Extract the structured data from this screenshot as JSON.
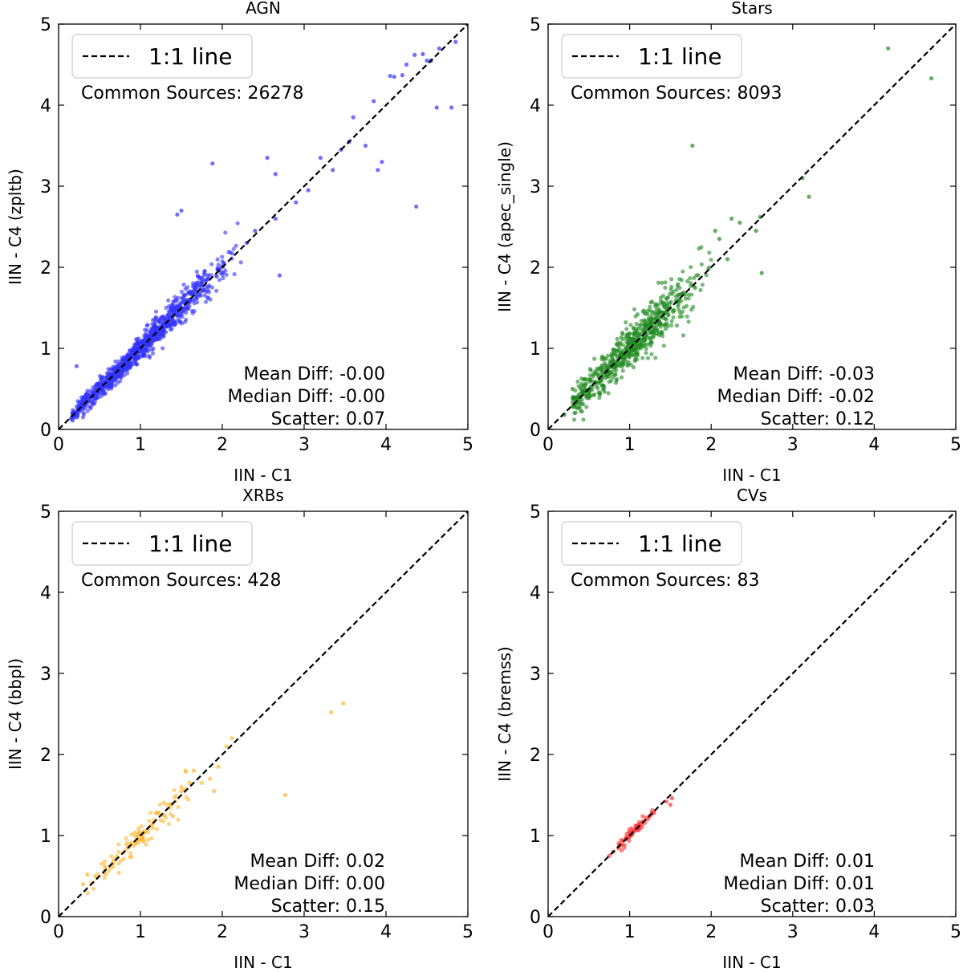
{
  "figure": {
    "reference_line_label": "1:1 line"
  },
  "chart_data": [
    {
      "type": "scatter",
      "title": "AGN",
      "xlabel": "IIN - C1",
      "ylabel": "IIN - C4 (zpltb)",
      "xlim": [
        0,
        5
      ],
      "ylim": [
        0,
        5
      ],
      "xticks": [
        "0",
        "1",
        "2",
        "3",
        "4",
        "5"
      ],
      "yticks": [
        "0",
        "1",
        "2",
        "3",
        "4",
        "5"
      ],
      "color": "#3333ff",
      "legend": "1:1 line",
      "common_sources": "Common Sources: 26278",
      "stats": [
        "Mean Diff: -0.00",
        "Median Diff: -0.00",
        "Scatter: 0.07"
      ],
      "cluster": {
        "n": 950,
        "xmin": 0.15,
        "xmax": 2.25,
        "sigma": 0.07,
        "center": 1.0
      },
      "outliers": [
        [
          4.35,
          4.62
        ],
        [
          4.45,
          4.63
        ],
        [
          4.55,
          4.55
        ],
        [
          4.65,
          4.7
        ],
        [
          4.85,
          4.78
        ],
        [
          4.8,
          3.97
        ],
        [
          4.62,
          3.97
        ],
        [
          4.37,
          2.75
        ],
        [
          4.05,
          4.36
        ],
        [
          4.2,
          4.37
        ],
        [
          3.85,
          4.05
        ],
        [
          3.6,
          3.85
        ],
        [
          3.9,
          3.2
        ],
        [
          3.95,
          3.3
        ],
        [
          3.55,
          3.55
        ],
        [
          3.75,
          3.5
        ],
        [
          3.45,
          3.45
        ],
        [
          3.2,
          3.35
        ],
        [
          2.55,
          3.35
        ],
        [
          2.65,
          3.15
        ],
        [
          3.05,
          2.95
        ],
        [
          1.88,
          3.28
        ],
        [
          1.45,
          2.65
        ],
        [
          1.5,
          2.7
        ],
        [
          2.7,
          1.9
        ],
        [
          2.65,
          2.6
        ],
        [
          2.4,
          2.45
        ],
        [
          2.3,
          2.3
        ],
        [
          0.22,
          0.78
        ],
        [
          2.9,
          2.8
        ],
        [
          3.35,
          3.2
        ],
        [
          4.5,
          4.55
        ],
        [
          4.25,
          4.5
        ],
        [
          4.1,
          4.35
        ]
      ]
    },
    {
      "type": "scatter",
      "title": "Stars",
      "xlabel": "IIN - C1",
      "ylabel": "IIN - C4 (apec_single)",
      "xlim": [
        0,
        5
      ],
      "ylim": [
        0,
        5
      ],
      "xticks": [
        "0",
        "1",
        "2",
        "3",
        "4",
        "5"
      ],
      "yticks": [
        "0",
        "1",
        "2",
        "3",
        "4",
        "5"
      ],
      "color": "#228b22",
      "legend": "1:1 line",
      "common_sources": "Common Sources: 8093",
      "stats": [
        "Mean Diff: -0.03",
        "Median Diff: -0.02",
        "Scatter: 0.12"
      ],
      "cluster": {
        "n": 650,
        "xmin": 0.3,
        "xmax": 2.0,
        "sigma": 0.12,
        "center": 1.0
      },
      "outliers": [
        [
          4.17,
          4.7
        ],
        [
          4.7,
          4.33
        ],
        [
          1.77,
          3.5
        ],
        [
          3.2,
          2.87
        ],
        [
          3.12,
          3.1
        ],
        [
          2.6,
          2.62
        ],
        [
          2.55,
          2.45
        ],
        [
          2.62,
          1.93
        ],
        [
          2.35,
          2.55
        ],
        [
          2.25,
          2.6
        ],
        [
          0.2,
          0.18
        ],
        [
          0.3,
          0.5
        ],
        [
          2.05,
          2.45
        ],
        [
          2.2,
          2.1
        ],
        [
          2.1,
          2.35
        ]
      ]
    },
    {
      "type": "scatter",
      "title": "XRBs",
      "xlabel": "IIN - C1",
      "ylabel": "IIN - C4 (bbpl)",
      "xlim": [
        0,
        5
      ],
      "ylim": [
        0,
        5
      ],
      "xticks": [
        "0",
        "1",
        "2",
        "3",
        "4",
        "5"
      ],
      "yticks": [
        "0",
        "1",
        "2",
        "3",
        "4",
        "5"
      ],
      "color": "#ffb833",
      "legend": "1:1 line",
      "common_sources": "Common Sources: 428",
      "stats": [
        "Mean Diff: 0.02",
        "Median Diff: 0.00",
        "Scatter: 0.15"
      ],
      "cluster": {
        "n": 110,
        "xmin": 0.3,
        "xmax": 1.6,
        "sigma": 0.08,
        "center": 1.0
      },
      "outliers": [
        [
          3.33,
          2.52
        ],
        [
          3.48,
          2.63
        ],
        [
          2.77,
          1.5
        ],
        [
          1.55,
          1.8
        ],
        [
          1.6,
          1.65
        ],
        [
          1.65,
          1.8
        ],
        [
          1.95,
          1.85
        ],
        [
          2.05,
          2.1
        ],
        [
          2.12,
          2.2
        ],
        [
          1.85,
          1.7
        ],
        [
          1.9,
          1.55
        ],
        [
          0.35,
          0.52
        ],
        [
          0.3,
          0.4
        ],
        [
          0.45,
          0.5
        ],
        [
          1.75,
          1.65
        ],
        [
          1.5,
          1.6
        ]
      ]
    },
    {
      "type": "scatter",
      "title": "CVs",
      "xlabel": "IIN - C1",
      "ylabel": "IIN - C4 (bremss)",
      "xlim": [
        0,
        5
      ],
      "ylim": [
        0,
        5
      ],
      "xticks": [
        "0",
        "1",
        "2",
        "3",
        "4",
        "5"
      ],
      "yticks": [
        "0",
        "1",
        "2",
        "3",
        "4",
        "5"
      ],
      "color": "#ff3333",
      "legend": "1:1 line",
      "common_sources": "Common Sources: 83",
      "stats": [
        "Mean Diff: 0.01",
        "Median Diff: 0.01",
        "Scatter: 0.03"
      ],
      "cluster": {
        "n": 70,
        "xmin": 0.85,
        "xmax": 1.3,
        "sigma": 0.03,
        "center": 1.05
      },
      "outliers": [
        [
          0.75,
          0.75
        ],
        [
          0.8,
          0.8
        ],
        [
          1.5,
          1.38
        ],
        [
          1.52,
          1.46
        ],
        [
          1.45,
          1.42
        ],
        [
          1.3,
          1.28
        ]
      ]
    }
  ]
}
